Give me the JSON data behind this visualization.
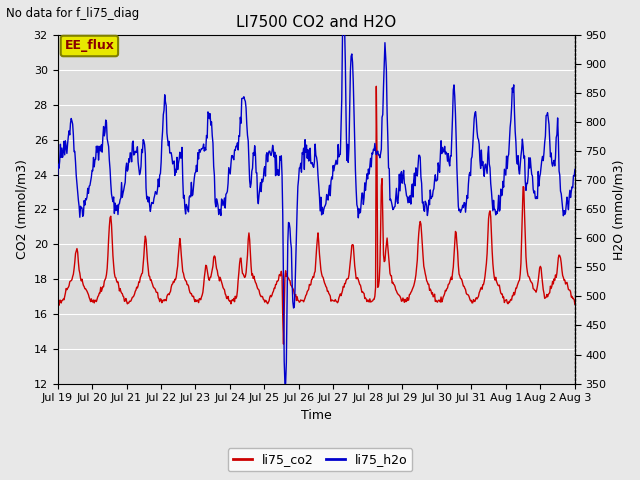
{
  "title": "LI7500 CO2 and H2O",
  "top_left_text": "No data for f_li75_diag",
  "xlabel": "Time",
  "ylabel_left": "CO2 (mmol/m3)",
  "ylabel_right": "H2O (mmol/m3)",
  "ylim_left": [
    12,
    32
  ],
  "ylim_right": [
    350,
    950
  ],
  "yticks_left": [
    12,
    14,
    16,
    18,
    20,
    22,
    24,
    26,
    28,
    30,
    32
  ],
  "yticks_right": [
    350,
    400,
    450,
    500,
    550,
    600,
    650,
    700,
    750,
    800,
    850,
    900,
    950
  ],
  "co2_color": "#cc0000",
  "h2o_color": "#0000cc",
  "background_color": "#e8e8e8",
  "plot_bg_color": "#dcdcdc",
  "legend_label_co2": "li75_co2",
  "legend_label_h2o": "li75_h2o",
  "ee_flux_box_color": "#e8e800",
  "ee_flux_text": "EE_flux",
  "linewidth": 1.0,
  "xtick_labels": [
    "Jul 19",
    "Jul 20",
    "Jul 21",
    "Jul 22",
    "Jul 23",
    "Jul 24",
    "Jul 25",
    "Jul 26",
    "Jul 27",
    "Jul 28",
    "Jul 29",
    "Jul 30",
    "Jul 31",
    "Aug 1",
    "Aug 2",
    "Aug 3"
  ],
  "grid_color": "#ffffff",
  "grid_linewidth": 0.8,
  "n_days": 15
}
